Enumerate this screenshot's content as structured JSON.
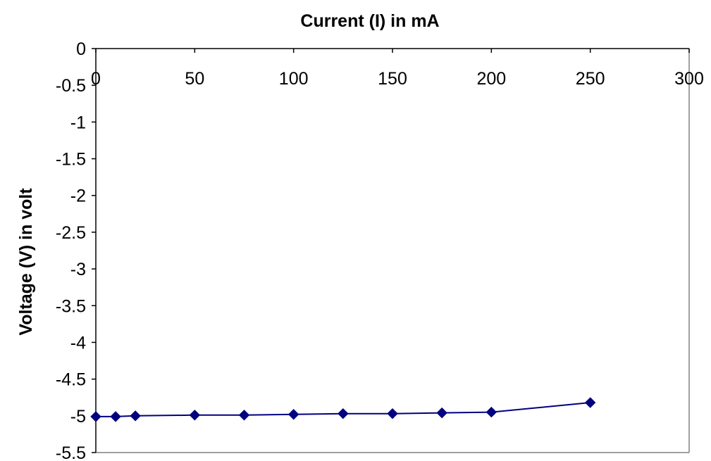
{
  "chart_data": {
    "type": "line",
    "title": "Current (I) in mA",
    "xlabel": "",
    "ylabel": "Voltage (V) in volt",
    "xlim": [
      0,
      300
    ],
    "ylim": [
      -5.5,
      0
    ],
    "x_ticks": [
      "0",
      "50",
      "100",
      "150",
      "200",
      "250",
      "300"
    ],
    "y_ticks": [
      "0",
      "-0.5",
      "-1",
      "-1.5",
      "-2",
      "-2.5",
      "-3",
      "-3.5",
      "-4",
      "-4.5",
      "-5",
      "-5.5"
    ],
    "grid": false,
    "legend": "none",
    "series": [
      {
        "color": "#000080",
        "marker": "diamond",
        "x": [
          0,
          10,
          20,
          50,
          75,
          100,
          125,
          150,
          175,
          200,
          250
        ],
        "y": [
          -5.01,
          -5.01,
          -5.0,
          -4.99,
          -4.99,
          -4.98,
          -4.97,
          -4.97,
          -4.96,
          -4.95,
          -4.82
        ]
      }
    ]
  }
}
